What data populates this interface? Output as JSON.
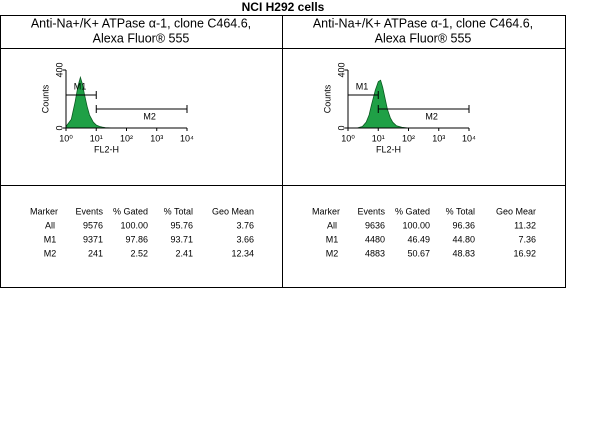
{
  "title": "NCI H292 cells",
  "chart_data": [
    {
      "type": "histogram",
      "title": [
        "Anti-Na+/K+ ATPase α-1, clone C464.6,",
        "Alexa Fluor® 555"
      ],
      "xlabel": "FL2-H",
      "ylabel": "Counts",
      "log_x": true,
      "color": "#1fa046",
      "xlim": [
        1,
        10000
      ],
      "xticks": [
        {
          "value": 1,
          "label": "10⁰"
        },
        {
          "value": 10,
          "label": "10¹"
        },
        {
          "value": 100,
          "label": "10²"
        },
        {
          "value": 1000,
          "label": "10³"
        },
        {
          "value": 10000,
          "label": "10⁴"
        }
      ],
      "ylim": [
        0,
        400
      ],
      "yticks": [
        0,
        400
      ],
      "x": [
        1,
        1.5,
        2,
        2.5,
        3,
        3.5,
        4,
        5,
        6,
        8,
        10,
        13,
        16,
        20,
        30,
        50
      ],
      "values": [
        10,
        60,
        180,
        290,
        350,
        300,
        240,
        150,
        90,
        40,
        20,
        10,
        6,
        3,
        1,
        0
      ],
      "gates": [
        {
          "label": "M1",
          "range": [
            1,
            10
          ]
        },
        {
          "label": "M2",
          "range": [
            10,
            10000
          ]
        }
      ]
    },
    {
      "type": "histogram",
      "title": [
        "Anti-Na+/K+ ATPase α-1, clone C464.6,",
        "Alexa Fluor® 555"
      ],
      "xlabel": "FL2-H",
      "ylabel": "Counts",
      "log_x": true,
      "color": "#1fa046",
      "xlim": [
        1,
        10000
      ],
      "xticks": [
        {
          "value": 1,
          "label": "10⁰"
        },
        {
          "value": 10,
          "label": "10¹"
        },
        {
          "value": 100,
          "label": "10²"
        },
        {
          "value": 1000,
          "label": "10³"
        },
        {
          "value": 10000,
          "label": "10⁴"
        }
      ],
      "ylim": [
        0,
        400
      ],
      "yticks": [
        0,
        400
      ],
      "x": [
        2,
        3,
        4,
        5,
        6,
        8,
        10,
        12,
        14,
        17,
        20,
        25,
        30,
        40,
        60,
        100
      ],
      "values": [
        0,
        10,
        40,
        90,
        160,
        260,
        320,
        330,
        280,
        200,
        130,
        70,
        40,
        15,
        5,
        0
      ],
      "gates": [
        {
          "label": "M1",
          "range": [
            1,
            10
          ]
        },
        {
          "label": "M2",
          "range": [
            10,
            10000
          ]
        }
      ]
    }
  ],
  "tables": [
    {
      "columns": [
        "Marker",
        "Events",
        "% Gated",
        "% Total",
        "Geo Mean"
      ],
      "rows": [
        [
          "All",
          "9576",
          "100.00",
          "95.76",
          "3.76"
        ],
        [
          "M1",
          "9371",
          "97.86",
          "93.71",
          "3.66"
        ],
        [
          "M2",
          "241",
          "2.52",
          "2.41",
          "12.34"
        ]
      ]
    },
    {
      "columns": [
        "Marker",
        "Events",
        "% Gated",
        "% Total",
        "Geo Mear"
      ],
      "rows": [
        [
          "All",
          "9636",
          "100.00",
          "96.36",
          "11.32"
        ],
        [
          "M1",
          "4480",
          "46.49",
          "44.80",
          "7.36"
        ],
        [
          "M2",
          "4883",
          "50.67",
          "48.83",
          "16.92"
        ]
      ]
    }
  ]
}
